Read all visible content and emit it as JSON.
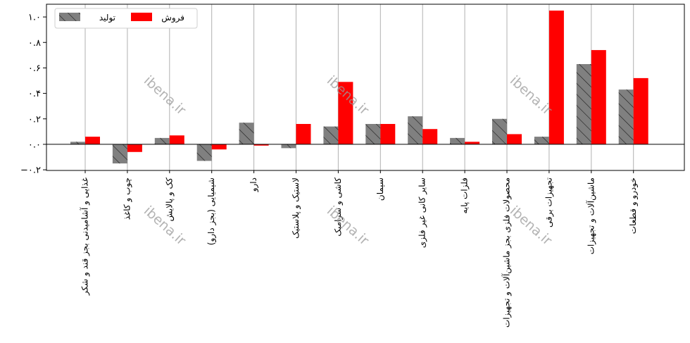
{
  "chart_data": {
    "type": "bar",
    "categories": [
      "غذایی و آشامیدنی بجز قند و شکر",
      "چوب و کاغذ",
      "کک و پالایش",
      "شیمیایی (بجز دارو)",
      "دارو",
      "لاستیک و پلاستیک",
      "کاشی و سرامیک",
      "سیمان",
      "سایر کانی غیر فلزی",
      "فلزات پایه",
      "محصولات فلزی بجز ماشین‌آلات و تجهیزات",
      "تجهیزات برقی",
      "ماشین‌آلات و تجهیزات",
      "خودرو و قطعات"
    ],
    "series": [
      {
        "name": "تولید",
        "color": "#808080",
        "hatch": "diagonal",
        "values": [
          0.02,
          -0.15,
          0.05,
          -0.13,
          0.17,
          -0.03,
          0.14,
          0.16,
          0.22,
          0.05,
          0.2,
          0.06,
          0.63,
          0.43
        ]
      },
      {
        "name": "فروش",
        "color": "#ff0000",
        "values": [
          0.06,
          -0.06,
          0.07,
          -0.04,
          -0.01,
          0.16,
          0.49,
          0.16,
          0.12,
          0.02,
          0.08,
          1.05,
          0.74,
          0.52
        ]
      }
    ],
    "yticks": [
      -0.2,
      0.0,
      0.2,
      0.4,
      0.6,
      0.8,
      1.0
    ],
    "ytick_labels": [
      "−۰.۲",
      "۰.۰",
      "۰.۲",
      "۰.۴",
      "۰.۶",
      "۰.۸",
      "۱.۰"
    ],
    "ylim": [
      -0.205,
      1.1
    ],
    "grid": "vertical",
    "legend_position": "top-left",
    "title": "",
    "xlabel": "",
    "ylabel": ""
  },
  "watermark": {
    "text": "ibena.ir"
  }
}
